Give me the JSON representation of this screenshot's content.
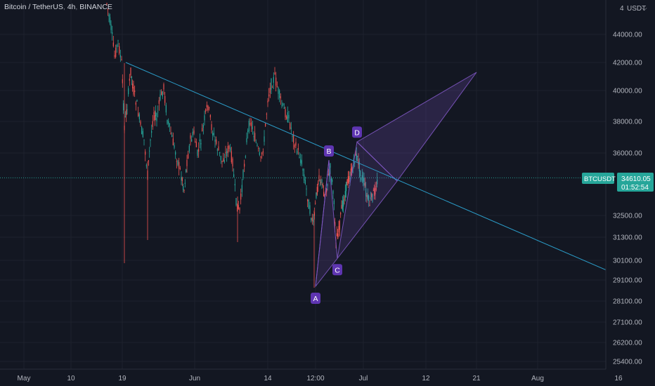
{
  "header": {
    "symbol": "Bitcoin / TetherUS",
    "interval": "4h",
    "exchange": "BINANCE"
  },
  "price_axis": {
    "currency_label": "USDT",
    "top_tick": "4"
  },
  "price_tag": {
    "symbol": "BTCUSDT",
    "price": "34610.05",
    "countdown": "01:52:54"
  },
  "colors": {
    "background": "#131722",
    "up": "#26a69a",
    "down": "#ef5350",
    "trendline": "#2b9cc8",
    "pattern": "#7e57c2",
    "label_bg": "#5e35b1",
    "price_tag": "#26a69a"
  },
  "chart_data": {
    "type": "candlestick",
    "x_ticks": [
      "May",
      "10",
      "19",
      "Jun",
      "14",
      "12:00",
      "Jul",
      "12",
      "21",
      "Aug",
      "16"
    ],
    "y_ticks": [
      "44000.00",
      "42000.00",
      "40000.00",
      "38000.00",
      "36000.00",
      "32500.00",
      "31300.00",
      "30100.00",
      "29100.00",
      "28100.00",
      "27100.00",
      "26200.00",
      "25400.00"
    ],
    "current_price": 34610.05,
    "harmonic_pattern": {
      "points": [
        {
          "label": "A",
          "price": 28800
        },
        {
          "label": "B",
          "price": 35600
        },
        {
          "label": "C",
          "price": 30200
        },
        {
          "label": "D",
          "price": 36700
        }
      ]
    },
    "trendline": {
      "start_price": 42000,
      "end_price": 29400
    }
  }
}
